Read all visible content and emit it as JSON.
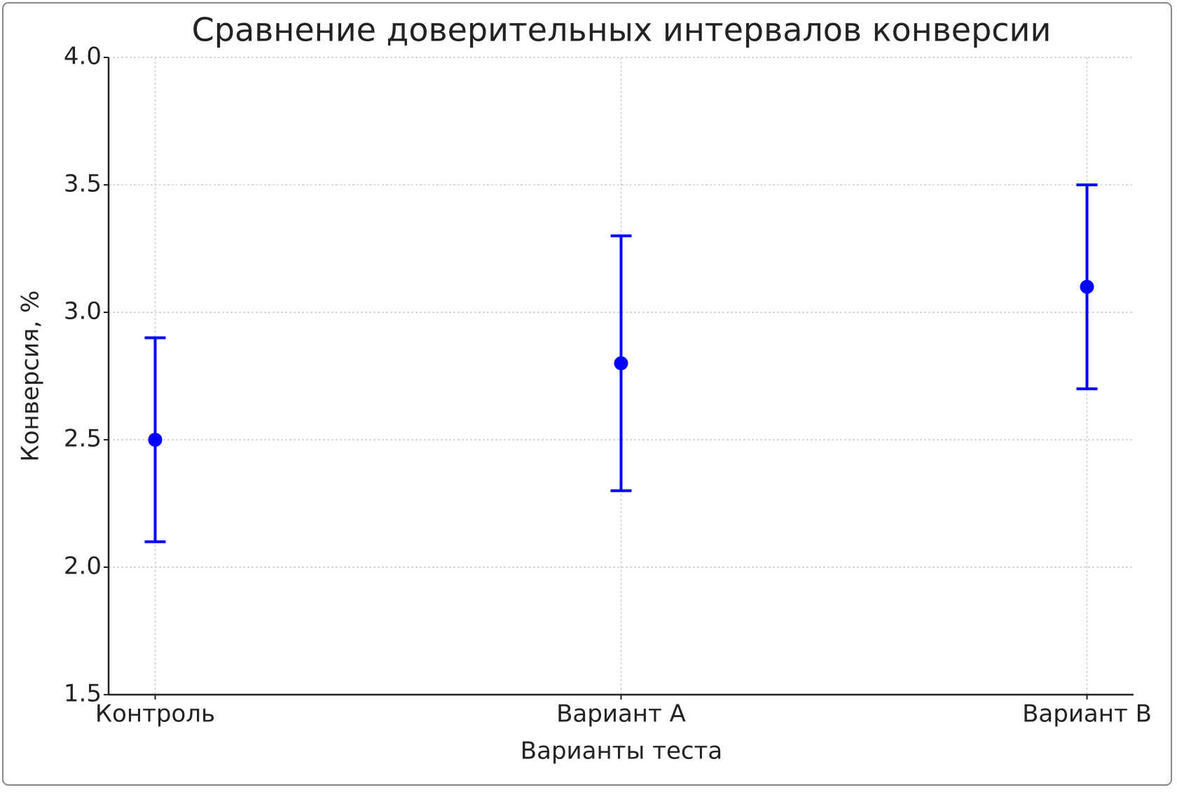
{
  "chart_data": {
    "type": "errorbar",
    "title": "Сравнение доверительных интервалов конверсии",
    "x_label": "Варианты теста",
    "y_label": "Конверсия, %",
    "categories": [
      "Контроль",
      "Вариант A",
      "Вариант B"
    ],
    "values": [
      2.5,
      2.8,
      3.1
    ],
    "errors": [
      0.4,
      0.5,
      0.4
    ],
    "color": "#0000ff",
    "ylim": [
      1.5,
      4.0
    ],
    "yticks": [
      1.5,
      {
        "value": 2,
        "label": "2.0"
      },
      2.5,
      {
        "value": 3,
        "label": "3.0"
      },
      3.5,
      {
        "value": 4,
        "label": "4.0"
      }
    ],
    "grid": true
  }
}
